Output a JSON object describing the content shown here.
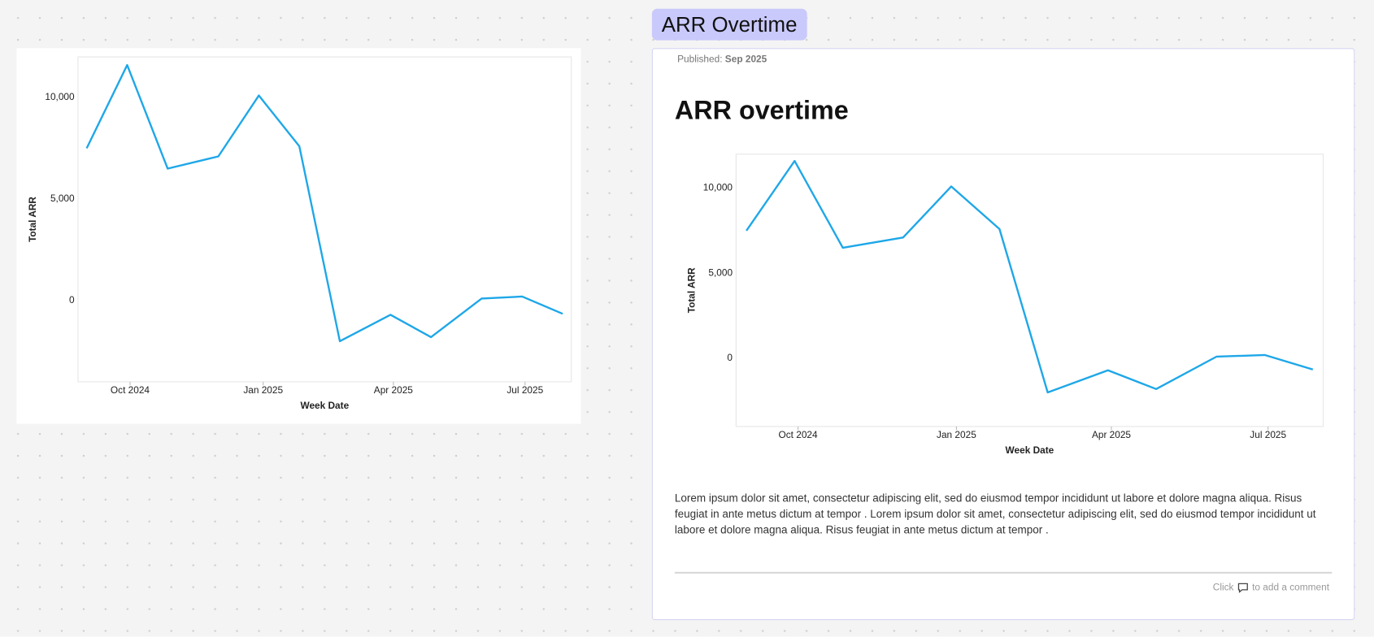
{
  "chart_data": [
    {
      "type": "line",
      "xlabel": "Week Date",
      "ylabel": "Total ARR",
      "color": "#1ea7e8",
      "x": [
        "2024-09-01",
        "2024-09-29",
        "2024-10-27",
        "2024-12-01",
        "2024-12-29",
        "2025-01-26",
        "2025-02-23",
        "2025-03-30",
        "2025-04-27",
        "2025-06-01",
        "2025-06-29",
        "2025-07-27"
      ],
      "values": [
        7500,
        11600,
        6500,
        7100,
        10100,
        7600,
        -2000,
        -700,
        -1800,
        100,
        200,
        -650
      ],
      "xlim": [
        "2024-08-26",
        "2025-08-02"
      ],
      "xticks": [
        {
          "value": "2024-10-01",
          "label": "Oct 2024"
        },
        {
          "value": "2025-01-01",
          "label": "Jan 2025"
        },
        {
          "value": "2025-04-01",
          "label": "Apr 2025"
        },
        {
          "value": "2025-07-01",
          "label": "Jul 2025"
        }
      ],
      "ylim": [
        -4000,
        12000
      ],
      "yticks": [
        0,
        {
          "value": 5000,
          "label": "5,000"
        },
        {
          "value": 10000,
          "label": "10,000"
        }
      ],
      "grid": false
    },
    {
      "type": "line",
      "xlabel": "Week Date",
      "ylabel": "Total ARR",
      "color": "#1ea7e8",
      "x": [
        "2024-09-01",
        "2024-09-29",
        "2024-10-27",
        "2024-12-01",
        "2024-12-29",
        "2025-01-26",
        "2025-02-23",
        "2025-03-30",
        "2025-04-27",
        "2025-06-01",
        "2025-06-29",
        "2025-07-27"
      ],
      "values": [
        7500,
        11600,
        6500,
        7100,
        10100,
        7600,
        -2000,
        -700,
        -1800,
        100,
        200,
        -650
      ],
      "xlim": [
        "2024-08-26",
        "2025-08-02"
      ],
      "xticks": [
        {
          "value": "2024-10-01",
          "label": "Oct 2024"
        },
        {
          "value": "2025-01-01",
          "label": "Jan 2025"
        },
        {
          "value": "2025-04-01",
          "label": "Apr 2025"
        },
        {
          "value": "2025-07-01",
          "label": "Jul 2025"
        }
      ],
      "ylim": [
        -4000,
        12000
      ],
      "yticks": [
        0,
        {
          "value": 5000,
          "label": "5,000"
        },
        {
          "value": 10000,
          "label": "10,000"
        }
      ],
      "grid": false
    }
  ],
  "post": {
    "tab_title": "ARR Overtime",
    "published_label": "Published:",
    "published_date": "Sep 2025",
    "title": "ARR overtime",
    "body": "Lorem ipsum dolor sit amet, consectetur adipiscing elit, sed do eiusmod tempor incididunt ut labore et dolore magna aliqua. Risus feugiat in ante metus dictum at tempor . Lorem ipsum dolor sit amet, consectetur adipiscing elit, sed do eiusmod tempor incididunt ut labore et dolore magna aliqua. Risus feugiat in ante metus dictum at tempor .",
    "comment_prefix": "Click",
    "comment_suffix": "to add a comment"
  }
}
